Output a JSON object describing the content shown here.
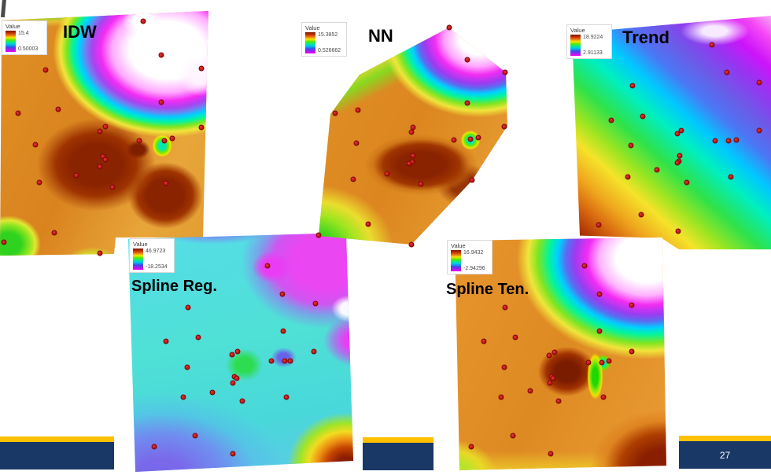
{
  "slide": {
    "page_number": "27",
    "accent_gold": "#FFC000",
    "bar_navy": "#1A3866",
    "point_color": "#CC1414"
  },
  "legend_ramp": [
    "#7A1800",
    "#C23000",
    "#E87818",
    "#F5E800",
    "#58E800",
    "#00E8A0",
    "#00B8F0",
    "#4048E8",
    "#A020F0",
    "#F000F0"
  ],
  "panels": [
    {
      "id": "idw",
      "title": "IDW",
      "legend": {
        "title": "Value",
        "max": "15.4",
        "min": "0.50003"
      },
      "points": [
        [
          68.4,
          4.7
        ],
        [
          77.1,
          18.0
        ],
        [
          96.2,
          23.3
        ],
        [
          21.8,
          23.9
        ],
        [
          77.1,
          36.3
        ],
        [
          27.8,
          39.1
        ],
        [
          8.6,
          40.7
        ],
        [
          50.4,
          46.0
        ],
        [
          47.7,
          47.8
        ],
        [
          66.5,
          51.6
        ],
        [
          78.6,
          51.6
        ],
        [
          82.3,
          50.6
        ],
        [
          96.2,
          46.3
        ],
        [
          16.9,
          53.1
        ],
        [
          49.2,
          57.8
        ],
        [
          50.4,
          59.0
        ],
        [
          47.7,
          61.8
        ],
        [
          36.5,
          65.2
        ],
        [
          18.8,
          68.0
        ],
        [
          53.8,
          69.9
        ],
        [
          79.3,
          68.3
        ],
        [
          25.9,
          87.6
        ],
        [
          1.9,
          91.3
        ],
        [
          47.7,
          95.7
        ]
      ]
    },
    {
      "id": "nn",
      "title": "NN",
      "legend": {
        "title": "Value",
        "max": "15.3852",
        "min": "0.526662"
      },
      "points": [
        [
          69.2,
          1.8
        ],
        [
          78.4,
          16.1
        ],
        [
          97.6,
          21.8
        ],
        [
          78.4,
          35.4
        ],
        [
          97.2,
          46.0
        ],
        [
          84.0,
          50.9
        ],
        [
          80.0,
          51.6
        ],
        [
          71.6,
          51.9
        ],
        [
          50.8,
          46.3
        ],
        [
          50.0,
          48.4
        ],
        [
          22.8,
          38.6
        ],
        [
          11.2,
          40.0
        ],
        [
          22.0,
          53.3
        ],
        [
          50.8,
          58.9
        ],
        [
          50.4,
          61.8
        ],
        [
          48.8,
          62.5
        ],
        [
          37.6,
          67.0
        ],
        [
          20.4,
          69.5
        ],
        [
          54.8,
          71.6
        ],
        [
          80.8,
          69.8
        ],
        [
          28.0,
          89.5
        ],
        [
          2.8,
          94.4
        ],
        [
          50.0,
          98.6
        ]
      ]
    },
    {
      "id": "trend",
      "title": "Trend",
      "legend": {
        "title": "Value",
        "max": "18.9224",
        "min": "2.91133"
      },
      "points": [
        [
          70.6,
          14.6
        ],
        [
          78.0,
          26.3
        ],
        [
          94.1,
          30.5
        ],
        [
          31.0,
          31.8
        ],
        [
          36.1,
          44.5
        ],
        [
          20.4,
          46.1
        ],
        [
          53.3,
          51.6
        ],
        [
          55.3,
          50.3
        ],
        [
          72.2,
          54.5
        ],
        [
          78.8,
          54.5
        ],
        [
          82.7,
          54.2
        ],
        [
          94.1,
          50.3
        ],
        [
          30.2,
          56.5
        ],
        [
          54.5,
          60.7
        ],
        [
          54.1,
          63.0
        ],
        [
          53.3,
          63.6
        ],
        [
          43.1,
          66.6
        ],
        [
          28.6,
          69.5
        ],
        [
          80.0,
          69.5
        ],
        [
          58.0,
          71.8
        ],
        [
          35.3,
          85.4
        ],
        [
          14.1,
          89.6
        ],
        [
          53.7,
          92.2
        ]
      ]
    },
    {
      "id": "spline_reg",
      "title": "Spline Reg.",
      "legend": {
        "title": "Value",
        "max": "46.9723",
        "min": "-18.2534"
      },
      "points": [
        [
          61.0,
          14.5
        ],
        [
          67.5,
          26.0
        ],
        [
          81.7,
          29.9
        ],
        [
          26.8,
          31.5
        ],
        [
          67.8,
          41.2
        ],
        [
          31.2,
          43.7
        ],
        [
          17.3,
          45.3
        ],
        [
          48.1,
          49.5
        ],
        [
          45.8,
          50.8
        ],
        [
          62.7,
          53.4
        ],
        [
          68.5,
          53.4
        ],
        [
          70.8,
          53.4
        ],
        [
          81.0,
          49.5
        ],
        [
          26.4,
          55.9
        ],
        [
          46.8,
          59.8
        ],
        [
          47.8,
          60.5
        ],
        [
          46.1,
          62.4
        ],
        [
          37.3,
          66.2
        ],
        [
          24.7,
          68.2
        ],
        [
          50.2,
          69.8
        ],
        [
          69.2,
          68.2
        ],
        [
          29.8,
          83.9
        ],
        [
          12.2,
          88.4
        ],
        [
          46.1,
          91.3
        ]
      ]
    },
    {
      "id": "spline_ten",
      "title": "Spline Ten.",
      "legend": {
        "title": "Value",
        "max": "16.9432",
        "min": "-2.94296"
      },
      "points": [
        [
          61.1,
          13.1
        ],
        [
          68.0,
          24.8
        ],
        [
          82.9,
          29.4
        ],
        [
          24.4,
          30.4
        ],
        [
          68.0,
          40.2
        ],
        [
          29.1,
          42.8
        ],
        [
          14.5,
          44.4
        ],
        [
          47.3,
          49.0
        ],
        [
          44.7,
          50.3
        ],
        [
          62.9,
          53.3
        ],
        [
          69.1,
          53.3
        ],
        [
          72.4,
          52.6
        ],
        [
          82.9,
          48.7
        ],
        [
          24.0,
          55.2
        ],
        [
          45.8,
          59.2
        ],
        [
          46.5,
          59.8
        ],
        [
          45.1,
          61.8
        ],
        [
          36.0,
          65.0
        ],
        [
          22.5,
          67.6
        ],
        [
          49.1,
          69.3
        ],
        [
          69.8,
          67.6
        ],
        [
          28.0,
          83.7
        ],
        [
          8.7,
          88.2
        ],
        [
          45.5,
          91.2
        ]
      ]
    }
  ]
}
